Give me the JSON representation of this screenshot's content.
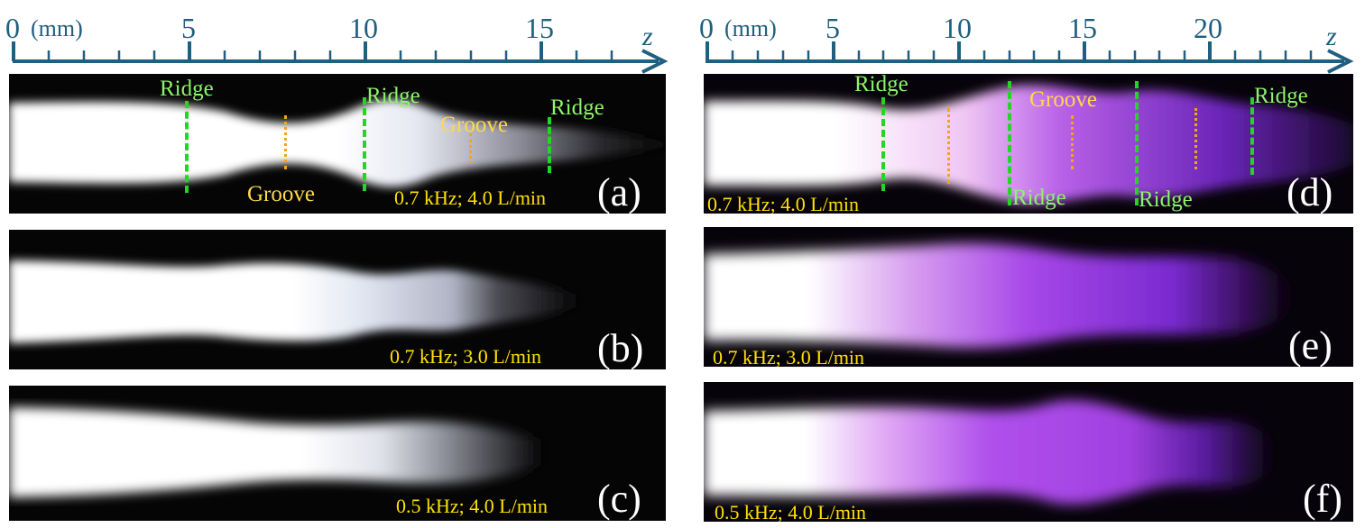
{
  "left_axis": {
    "ticks": [
      "0",
      "5",
      "10",
      "15"
    ],
    "unit": "(mm)",
    "variable": "z",
    "color": "#1f5f7f"
  },
  "right_axis": {
    "ticks": [
      "0",
      "5",
      "10",
      "15",
      "20"
    ],
    "unit": "(mm)",
    "variable": "z",
    "color": "#1f5f7f"
  },
  "panels": {
    "a": {
      "letter": "(a)",
      "condition": "0.7 kHz; 4.0 L/min",
      "labels": [
        "Ridge",
        "Ridge",
        "Groove",
        "Ridge",
        "Groove"
      ]
    },
    "b": {
      "letter": "(b)",
      "condition": "0.7 kHz; 3.0 L/min"
    },
    "c": {
      "letter": "(c)",
      "condition": "0.5 kHz; 4.0 L/min"
    },
    "d": {
      "letter": "(d)",
      "condition": "0.7 kHz; 4.0 L/min",
      "labels": [
        "Ridge",
        "Groove",
        "Ridge",
        "Ridge",
        "Ridge"
      ]
    },
    "e": {
      "letter": "(e)",
      "condition": "0.7 kHz; 3.0 L/min"
    },
    "f": {
      "letter": "(f)",
      "condition": "0.5 kHz; 4.0 L/min"
    }
  },
  "colors": {
    "ridge_label": "#8cf56a",
    "ridge_marker": "#24d624",
    "groove_label": "#ffd84a",
    "groove_marker": "#f3a418",
    "condition_text": "#ffe000",
    "plasma_white": "#ffffff",
    "plasma_purple": "#b040f0"
  }
}
